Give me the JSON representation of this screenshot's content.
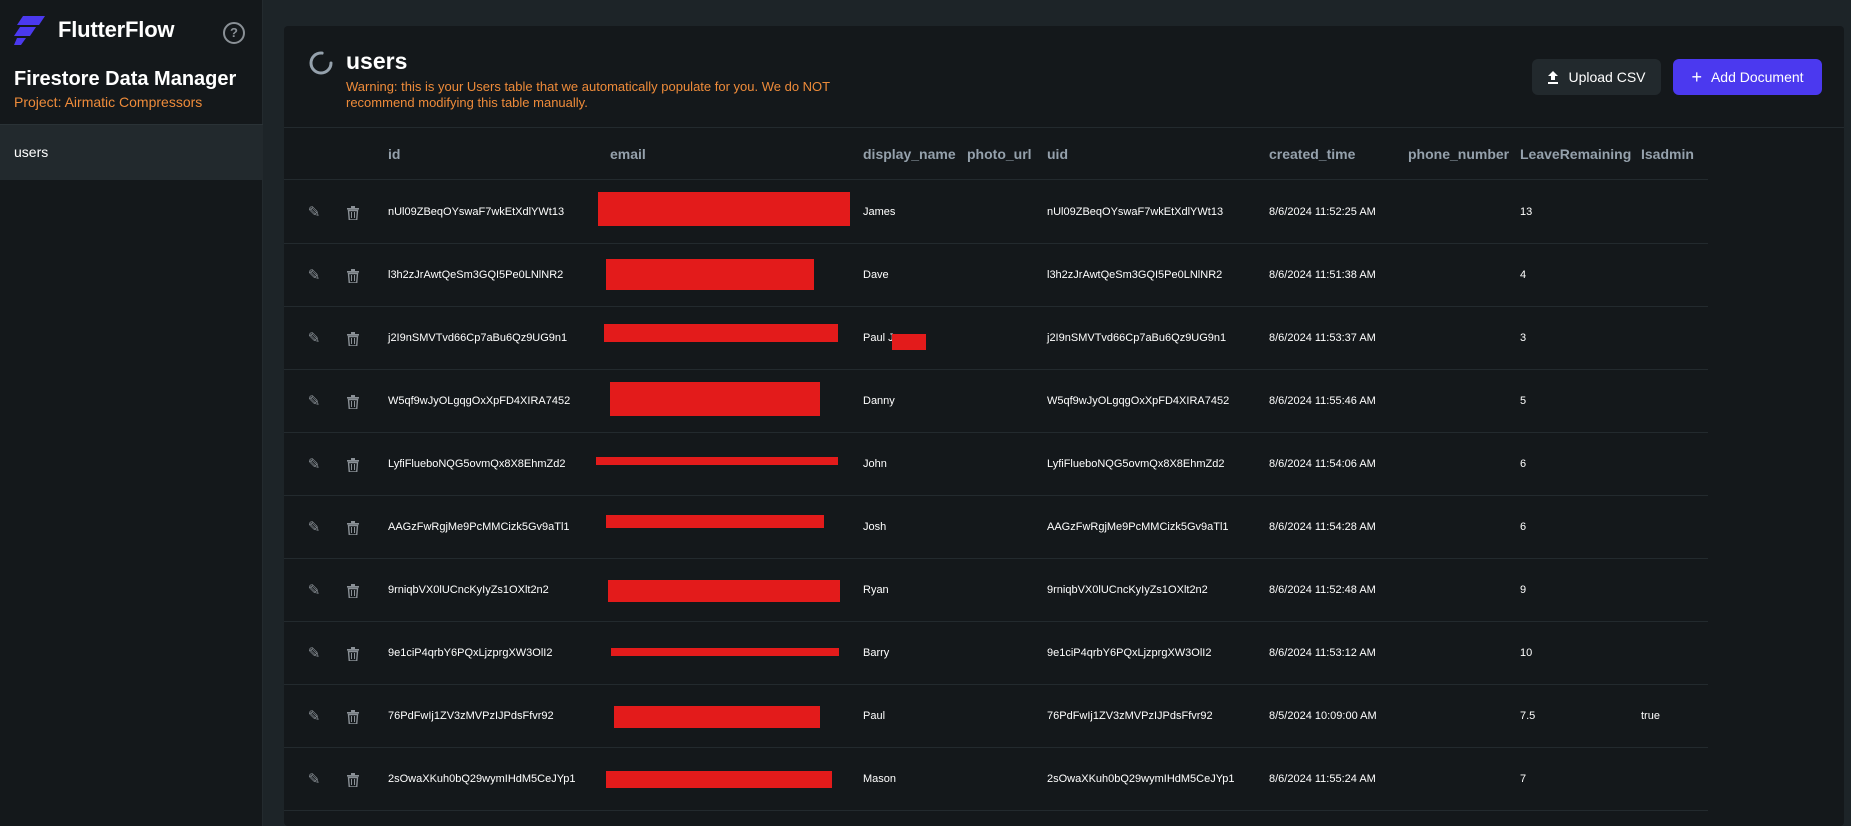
{
  "brand": {
    "name": "FlutterFlow",
    "logo_color": "#4b39ef"
  },
  "sidebar": {
    "title": "Firestore Data Manager",
    "project": "Project: Airmatic Compressors",
    "help_icon": "?",
    "items": [
      {
        "label": "users"
      }
    ]
  },
  "main": {
    "title": "users",
    "warning": "Warning: this is your Users table that we automatically populate for you. We do NOT recommend modifying this table manually.",
    "upload_label": "Upload CSV",
    "add_label": "Add Document",
    "accent_color": "#4b39ef",
    "warning_color": "#ee8b3a"
  },
  "table": {
    "columns": [
      "id",
      "email",
      "display_name",
      "photo_url",
      "uid",
      "created_time",
      "phone_number",
      "LeaveRemaining",
      "Isadmin"
    ],
    "rows": [
      {
        "id": "nUl09ZBeqOYswaF7wkEtXdlYWt13",
        "display_name": "James",
        "uid": "nUl09ZBeqOYswaF7wkEtXdlYWt13",
        "created_time": "8/6/2024 11:52:25 AM",
        "leave": "13",
        "isadmin": ""
      },
      {
        "id": "l3h2zJrAwtQeSm3GQI5Pe0LNlNR2",
        "display_name": "Dave",
        "uid": "l3h2zJrAwtQeSm3GQI5Pe0LNlNR2",
        "created_time": "8/6/2024 11:51:38 AM",
        "leave": "4",
        "isadmin": ""
      },
      {
        "id": "j2I9nSMVTvd66Cp7aBu6Qz9UG9n1",
        "display_name": "Paul J",
        "uid": "j2I9nSMVTvd66Cp7aBu6Qz9UG9n1",
        "created_time": "8/6/2024 11:53:37 AM",
        "leave": "3",
        "isadmin": ""
      },
      {
        "id": "W5qf9wJyOLgqgOxXpFD4XIRA7452",
        "display_name": "Danny",
        "uid": "W5qf9wJyOLgqgOxXpFD4XIRA7452",
        "created_time": "8/6/2024 11:55:46 AM",
        "leave": "5",
        "isadmin": ""
      },
      {
        "id": "LyfiFlueboNQG5ovmQx8X8EhmZd2",
        "display_name": "John",
        "uid": "LyfiFlueboNQG5ovmQx8X8EhmZd2",
        "created_time": "8/6/2024 11:54:06 AM",
        "leave": "6",
        "isadmin": ""
      },
      {
        "id": "AAGzFwRgjMe9PcMMCizk5Gv9aTl1",
        "display_name": "Josh",
        "uid": "AAGzFwRgjMe9PcMMCizk5Gv9aTl1",
        "created_time": "8/6/2024 11:54:28 AM",
        "leave": "6",
        "isadmin": ""
      },
      {
        "id": "9rniqbVX0lUCncKyIyZs1OXlt2n2",
        "display_name": "Ryan",
        "uid": "9rniqbVX0lUCncKyIyZs1OXlt2n2",
        "created_time": "8/6/2024 11:52:48 AM",
        "leave": "9",
        "isadmin": ""
      },
      {
        "id": "9e1ciP4qrbY6PQxLjzprgXW3OlI2",
        "display_name": "Barry",
        "uid": "9e1ciP4qrbY6PQxLjzprgXW3OlI2",
        "created_time": "8/6/2024 11:53:12 AM",
        "leave": "10",
        "isadmin": ""
      },
      {
        "id": "76PdFwIj1ZV3zMVPzIJPdsFfvr92",
        "display_name": "Paul",
        "uid": "76PdFwIj1ZV3zMVPzIJPdsFfvr92",
        "created_time": "8/5/2024 10:09:00 AM",
        "leave": "7.5",
        "isadmin": "true"
      },
      {
        "id": "2sOwaXKuh0bQ29wymIHdM5CeJYp1",
        "display_name": "Mason",
        "uid": "2sOwaXKuh0bQ29wymIHdM5CeJYp1",
        "created_time": "8/6/2024 11:55:24 AM",
        "leave": "7",
        "isadmin": ""
      }
    ]
  }
}
